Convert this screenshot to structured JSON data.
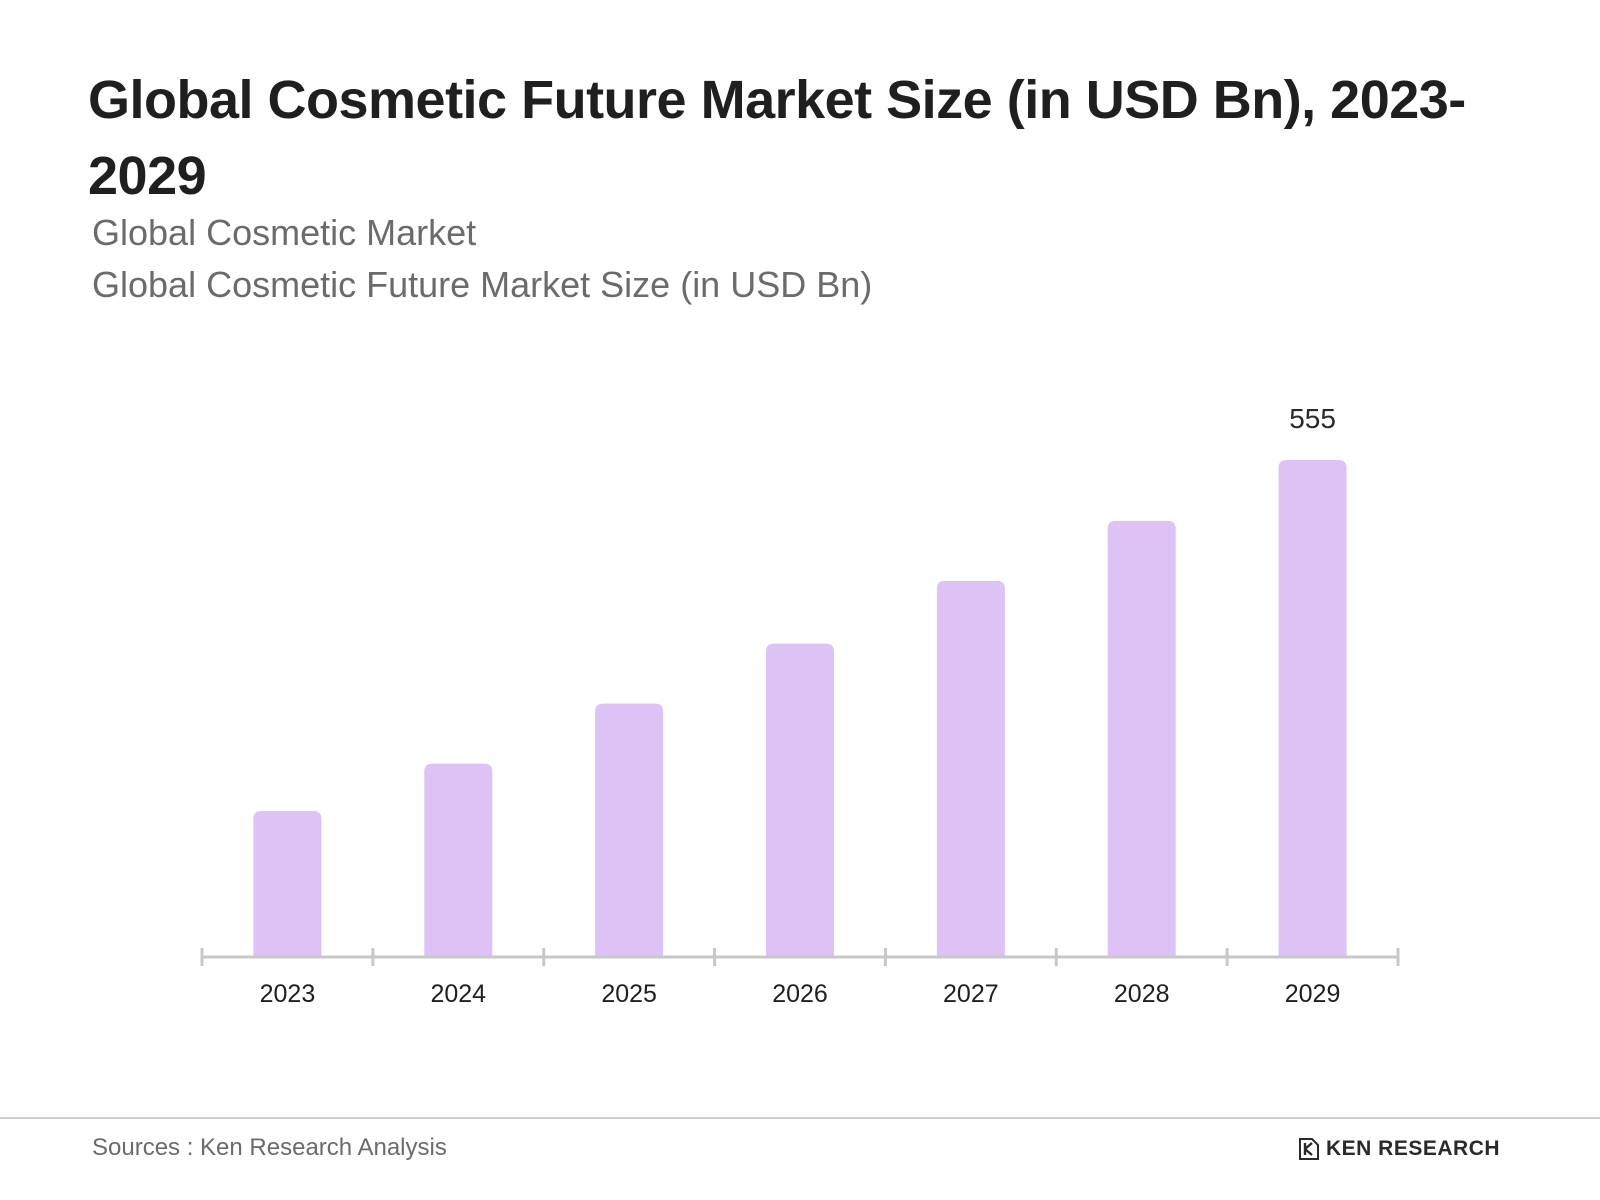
{
  "chart_data": {
    "type": "bar",
    "title": "Global Cosmetic Future Market Size (in USD Bn), 2023-2029",
    "subtitles": [
      "Global Cosmetic Market",
      "Global Cosmetic Future Market Size (in USD Bn)"
    ],
    "categories": [
      "2023",
      "2024",
      "2025",
      "2026",
      "2027",
      "2028",
      "2029"
    ],
    "values": [
      163,
      216,
      283,
      350,
      420,
      487,
      555
    ],
    "data_labels": [
      null,
      null,
      null,
      null,
      null,
      null,
      "555"
    ],
    "xlabel": "",
    "ylabel": "",
    "ylim": [
      0,
      555
    ],
    "grid": false,
    "legend": "none",
    "bar_color": "#dcc2f5",
    "axis_color": "#c8c8c8"
  },
  "footer": {
    "source": "Sources : Ken Research Analysis",
    "logo_text": "KEN RESEARCH"
  }
}
